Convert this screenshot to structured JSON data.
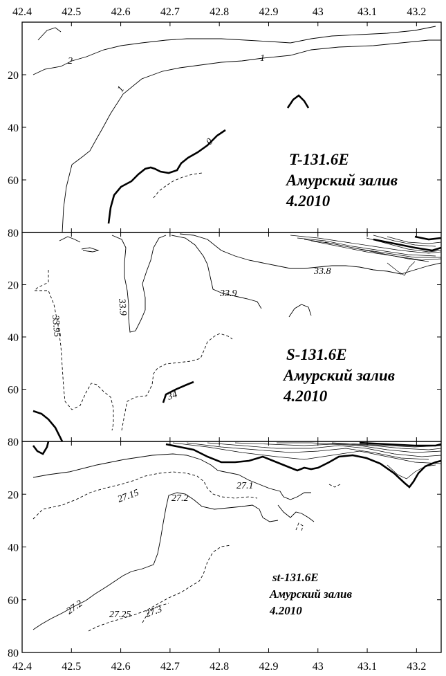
{
  "chart_data": [
    {
      "type": "contour",
      "variable": "T",
      "x_ticks": [
        "42.4",
        "42.5",
        "42.6",
        "42.7",
        "42.8",
        "42.9",
        "43",
        "43.1",
        "43.2"
      ],
      "y_ticks": [
        "20",
        "40",
        "60",
        "80"
      ],
      "xlim": [
        42.4,
        43.25
      ],
      "ylim": [
        80,
        0
      ],
      "title_lines": [
        "T-131.6E",
        "Амурский залив",
        "4.2010"
      ],
      "contour_labels": [
        "2",
        "1",
        "1",
        "0"
      ]
    },
    {
      "type": "contour",
      "variable": "S",
      "y_ticks": [
        "20",
        "40",
        "60",
        "80"
      ],
      "xlim": [
        42.4,
        43.25
      ],
      "ylim": [
        80,
        0
      ],
      "title_lines": [
        "S-131.6E",
        "Амурский залив",
        "4.2010"
      ],
      "contour_labels": [
        "33.8",
        "33.9",
        "33.9",
        "33.95",
        "34"
      ]
    },
    {
      "type": "contour",
      "variable": "st",
      "x_ticks": [
        "42.4",
        "42.5",
        "42.6",
        "42.7",
        "42.8",
        "42.9",
        "43",
        "43.1",
        "43.2"
      ],
      "y_ticks": [
        "20",
        "40",
        "60",
        "80"
      ],
      "xlim": [
        42.4,
        43.25
      ],
      "ylim": [
        80,
        0
      ],
      "title_lines": [
        "st-131.6E",
        "Амурский залив",
        "4.2010"
      ],
      "contour_labels": [
        "27.15",
        "27.2",
        "27.1",
        "27.2",
        "27.25",
        "27.3"
      ]
    }
  ]
}
